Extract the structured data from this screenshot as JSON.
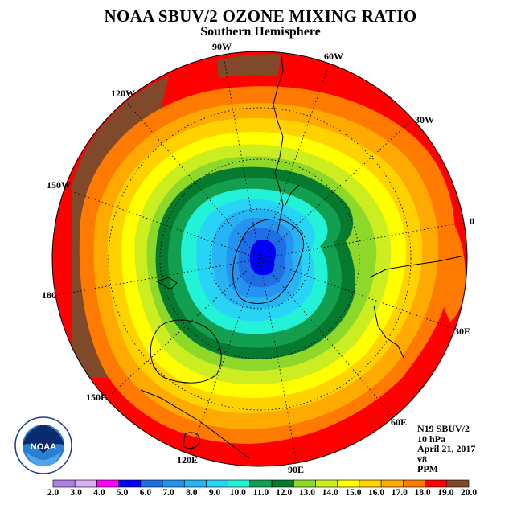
{
  "header": {
    "title": "NOAA SBUV/2 OZONE MIXING RATIO",
    "subtitle": "Southern Hemisphere"
  },
  "map": {
    "projection": "polar stereographic, South Pole centered",
    "longitude_labels": [
      "90W",
      "60W",
      "30W",
      "0",
      "30E",
      "60E",
      "90E",
      "120E",
      "150E",
      "180",
      "150W",
      "120W"
    ],
    "contour_levels_ppm": [
      "20.0 (outer rim, southwest)",
      "19.0",
      "18.0",
      "17.0",
      "16.0",
      "15.0",
      "14.0",
      "13.0",
      "12.0",
      "11.0",
      "10.0",
      "9.0",
      "8.0",
      "7.0",
      "6.0",
      "5.0 (pole)"
    ]
  },
  "info": {
    "satellite": "N19 SBUV/2",
    "level": "10 hPa",
    "date": "April 21, 2017",
    "version": "v8",
    "units": "PPM"
  },
  "colorbar": {
    "ticks": [
      "2.0",
      "3.0",
      "4.0",
      "5.0",
      "6.0",
      "7.0",
      "8.0",
      "9.0",
      "10.0",
      "11.0",
      "12.0",
      "13.0",
      "14.0",
      "15.0",
      "16.0",
      "17.0",
      "18.0",
      "19.0",
      "20.0"
    ],
    "colors": [
      "#b07fe0",
      "#d7b0f0",
      "#ff00ff",
      "#0000ff",
      "#1e6ee6",
      "#2494f0",
      "#26b4f5",
      "#28d4f5",
      "#22f2d8",
      "#12a050",
      "#067a2e",
      "#8ed82a",
      "#ccee20",
      "#ffff00",
      "#ffd200",
      "#ffaa00",
      "#ff7a00",
      "#ff0000",
      "#804a2a"
    ]
  },
  "logo": {
    "text": "NOAA",
    "ring_text": "NATIONAL OCEANIC AND ATMOSPHERIC ADMINISTRATION · U.S. DEPARTMENT OF COMMERCE"
  }
}
